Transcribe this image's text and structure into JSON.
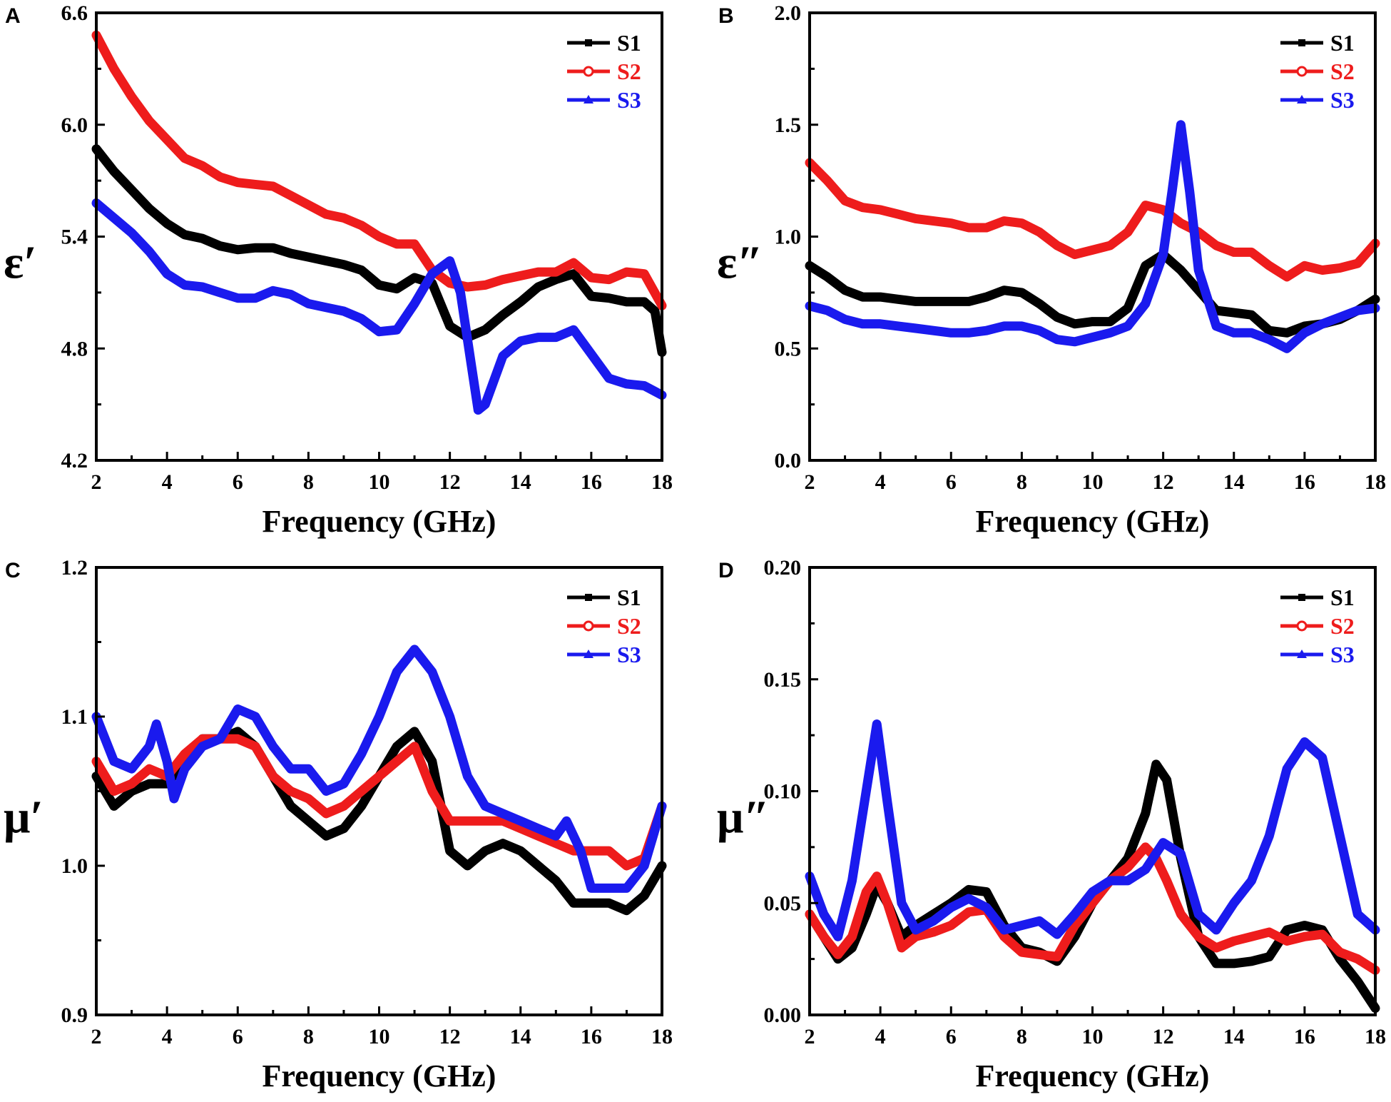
{
  "colors": {
    "S1": "#000000",
    "S2": "#ee1c1c",
    "S3": "#1a1aee"
  },
  "chart_data": [
    {
      "panel": "A",
      "type": "line",
      "xlabel": "Frequency (GHz)",
      "ylabel": "ε′",
      "xlim": [
        2,
        18
      ],
      "ylim": [
        4.2,
        6.6
      ],
      "xticks": [
        "2",
        "4",
        "6",
        "8",
        "10",
        "12",
        "14",
        "16",
        "18"
      ],
      "yticks": [
        "4.2",
        "4.8",
        "5.4",
        "6.0",
        "6.6"
      ],
      "legend": [
        "S1",
        "S2",
        "S3"
      ],
      "series": [
        {
          "name": "S1",
          "x": [
            2,
            2.5,
            3,
            3.5,
            4,
            4.5,
            5,
            5.5,
            6,
            6.5,
            7,
            7.5,
            8,
            8.5,
            9,
            9.5,
            10,
            10.5,
            11,
            11.5,
            12,
            12.5,
            13,
            13.5,
            14,
            14.5,
            15,
            15.5,
            16,
            16.5,
            17,
            17.5,
            17.8,
            18
          ],
          "y": [
            5.87,
            5.75,
            5.65,
            5.55,
            5.47,
            5.41,
            5.39,
            5.35,
            5.33,
            5.34,
            5.34,
            5.31,
            5.29,
            5.27,
            5.25,
            5.22,
            5.14,
            5.12,
            5.18,
            5.15,
            4.92,
            4.86,
            4.9,
            4.98,
            5.05,
            5.13,
            5.17,
            5.2,
            5.08,
            5.07,
            5.05,
            5.05,
            5.0,
            4.78
          ]
        },
        {
          "name": "S2",
          "x": [
            2,
            2.5,
            3,
            3.5,
            4,
            4.5,
            5,
            5.5,
            6,
            6.5,
            7,
            7.5,
            8,
            8.5,
            9,
            9.5,
            10,
            10.5,
            11,
            11.5,
            12,
            12.5,
            13,
            13.5,
            14,
            14.5,
            15,
            15.5,
            16,
            16.5,
            17,
            17.5,
            18
          ],
          "y": [
            6.48,
            6.3,
            6.15,
            6.02,
            5.92,
            5.82,
            5.78,
            5.72,
            5.69,
            5.68,
            5.67,
            5.62,
            5.57,
            5.52,
            5.5,
            5.46,
            5.4,
            5.36,
            5.36,
            5.22,
            5.15,
            5.13,
            5.14,
            5.17,
            5.19,
            5.21,
            5.21,
            5.26,
            5.18,
            5.17,
            5.21,
            5.2,
            5.03
          ]
        },
        {
          "name": "S3",
          "x": [
            2,
            2.5,
            3,
            3.5,
            4,
            4.5,
            5,
            5.5,
            6,
            6.5,
            7,
            7.5,
            8,
            8.5,
            9,
            9.5,
            10,
            10.5,
            11,
            11.5,
            12,
            12.3,
            12.6,
            12.8,
            13,
            13.5,
            14,
            14.5,
            15,
            15.5,
            16,
            16.5,
            17,
            17.5,
            18
          ],
          "y": [
            5.58,
            5.5,
            5.42,
            5.32,
            5.2,
            5.14,
            5.13,
            5.1,
            5.07,
            5.07,
            5.11,
            5.09,
            5.04,
            5.02,
            5.0,
            4.96,
            4.89,
            4.9,
            5.04,
            5.2,
            5.27,
            5.1,
            4.72,
            4.47,
            4.5,
            4.76,
            4.84,
            4.86,
            4.86,
            4.9,
            4.77,
            4.64,
            4.61,
            4.6,
            4.55
          ]
        }
      ]
    },
    {
      "panel": "B",
      "type": "line",
      "xlabel": "Frequency (GHz)",
      "ylabel": "ε″",
      "xlim": [
        2,
        18
      ],
      "ylim": [
        0.0,
        2.0
      ],
      "xticks": [
        "2",
        "4",
        "6",
        "8",
        "10",
        "12",
        "14",
        "16",
        "18"
      ],
      "yticks": [
        "0.0",
        "0.5",
        "1.0",
        "1.5",
        "2.0"
      ],
      "legend": [
        "S1",
        "S2",
        "S3"
      ],
      "series": [
        {
          "name": "S1",
          "x": [
            2,
            2.5,
            3,
            3.5,
            4,
            4.5,
            5,
            5.5,
            6,
            6.5,
            7,
            7.5,
            8,
            8.5,
            9,
            9.5,
            10,
            10.5,
            11,
            11.5,
            12,
            12.5,
            13,
            13.5,
            14,
            14.5,
            15,
            15.5,
            16,
            16.5,
            17,
            17.5,
            18
          ],
          "y": [
            0.87,
            0.82,
            0.76,
            0.73,
            0.73,
            0.72,
            0.71,
            0.71,
            0.71,
            0.71,
            0.73,
            0.76,
            0.75,
            0.7,
            0.64,
            0.61,
            0.62,
            0.62,
            0.68,
            0.87,
            0.92,
            0.85,
            0.76,
            0.67,
            0.66,
            0.65,
            0.58,
            0.57,
            0.6,
            0.61,
            0.63,
            0.67,
            0.72
          ]
        },
        {
          "name": "S2",
          "x": [
            2,
            2.5,
            3,
            3.5,
            4,
            4.5,
            5,
            5.5,
            6,
            6.5,
            7,
            7.5,
            8,
            8.5,
            9,
            9.5,
            10,
            10.5,
            11,
            11.5,
            12,
            12.5,
            13,
            13.5,
            14,
            14.5,
            15,
            15.5,
            16,
            16.5,
            17,
            17.5,
            18
          ],
          "y": [
            1.33,
            1.25,
            1.16,
            1.13,
            1.12,
            1.1,
            1.08,
            1.07,
            1.06,
            1.04,
            1.04,
            1.07,
            1.06,
            1.02,
            0.96,
            0.92,
            0.94,
            0.96,
            1.02,
            1.14,
            1.12,
            1.06,
            1.02,
            0.96,
            0.93,
            0.93,
            0.87,
            0.82,
            0.87,
            0.85,
            0.86,
            0.88,
            0.97
          ]
        },
        {
          "name": "S3",
          "x": [
            2,
            2.5,
            3,
            3.5,
            4,
            4.5,
            5,
            5.5,
            6,
            6.5,
            7,
            7.5,
            8,
            8.5,
            9,
            9.5,
            10,
            10.5,
            11,
            11.5,
            12,
            12.25,
            12.5,
            12.75,
            13,
            13.5,
            14,
            14.5,
            15,
            15.5,
            16,
            16.5,
            17,
            17.5,
            18
          ],
          "y": [
            0.69,
            0.67,
            0.63,
            0.61,
            0.61,
            0.6,
            0.59,
            0.58,
            0.57,
            0.57,
            0.58,
            0.6,
            0.6,
            0.58,
            0.54,
            0.53,
            0.55,
            0.57,
            0.6,
            0.7,
            0.92,
            1.2,
            1.5,
            1.2,
            0.85,
            0.6,
            0.57,
            0.57,
            0.54,
            0.5,
            0.57,
            0.61,
            0.64,
            0.67,
            0.68
          ]
        }
      ]
    },
    {
      "panel": "C",
      "type": "line",
      "xlabel": "Frequency (GHz)",
      "ylabel": "μ′",
      "xlim": [
        2,
        18
      ],
      "ylim": [
        0.9,
        1.2
      ],
      "xticks": [
        "2",
        "4",
        "6",
        "8",
        "10",
        "12",
        "14",
        "16",
        "18"
      ],
      "yticks": [
        "0.9",
        "1.0",
        "1.1",
        "1.2"
      ],
      "legend": [
        "S1",
        "S2",
        "S3"
      ],
      "series": [
        {
          "name": "S1",
          "x": [
            2,
            2.5,
            3,
            3.5,
            4,
            4.5,
            5,
            5.5,
            6,
            6.5,
            7,
            7.5,
            8,
            8.5,
            9,
            9.5,
            10,
            10.5,
            11,
            11.5,
            12,
            12.5,
            13,
            13.5,
            14,
            14.5,
            15,
            15.5,
            16,
            16.5,
            17,
            17.5,
            18
          ],
          "y": [
            1.06,
            1.04,
            1.05,
            1.055,
            1.055,
            1.07,
            1.085,
            1.085,
            1.09,
            1.08,
            1.06,
            1.04,
            1.03,
            1.02,
            1.025,
            1.04,
            1.06,
            1.08,
            1.09,
            1.07,
            1.01,
            1.0,
            1.01,
            1.015,
            1.01,
            1.0,
            0.99,
            0.975,
            0.975,
            0.975,
            0.97,
            0.98,
            1.0
          ]
        },
        {
          "name": "S2",
          "x": [
            2,
            2.5,
            3,
            3.5,
            4,
            4.5,
            5,
            5.5,
            6,
            6.5,
            7,
            7.5,
            8,
            8.5,
            9,
            9.5,
            10,
            10.5,
            11,
            11.5,
            12,
            12.5,
            13,
            13.5,
            14,
            14.5,
            15,
            15.5,
            16,
            16.5,
            17,
            17.5,
            18
          ],
          "y": [
            1.07,
            1.05,
            1.055,
            1.065,
            1.06,
            1.075,
            1.085,
            1.085,
            1.085,
            1.08,
            1.06,
            1.05,
            1.045,
            1.035,
            1.04,
            1.05,
            1.06,
            1.07,
            1.08,
            1.05,
            1.03,
            1.03,
            1.03,
            1.03,
            1.025,
            1.02,
            1.015,
            1.01,
            1.01,
            1.01,
            1.0,
            1.005,
            1.04
          ]
        },
        {
          "name": "S3",
          "x": [
            2,
            2.5,
            3,
            3.5,
            3.7,
            4,
            4.2,
            4.5,
            5,
            5.5,
            6,
            6.5,
            7,
            7.5,
            8,
            8.5,
            9,
            9.5,
            10,
            10.5,
            11,
            11.5,
            12,
            12.5,
            13,
            13.5,
            14,
            14.5,
            15,
            15.3,
            15.7,
            16,
            16.5,
            17,
            17.5,
            18
          ],
          "y": [
            1.1,
            1.07,
            1.065,
            1.08,
            1.095,
            1.07,
            1.045,
            1.065,
            1.08,
            1.085,
            1.105,
            1.1,
            1.08,
            1.065,
            1.065,
            1.05,
            1.055,
            1.075,
            1.1,
            1.13,
            1.145,
            1.13,
            1.1,
            1.06,
            1.04,
            1.035,
            1.03,
            1.025,
            1.02,
            1.03,
            1.01,
            0.985,
            0.985,
            0.985,
            1.0,
            1.04
          ]
        }
      ]
    },
    {
      "panel": "D",
      "type": "line",
      "xlabel": "Frequency (GHz)",
      "ylabel": "μ″",
      "xlim": [
        2,
        18
      ],
      "ylim": [
        0.0,
        0.2
      ],
      "xticks": [
        "2",
        "4",
        "6",
        "8",
        "10",
        "12",
        "14",
        "16",
        "18"
      ],
      "yticks": [
        "0.00",
        "0.05",
        "0.10",
        "0.15",
        "0.20"
      ],
      "legend": [
        "S1",
        "S2",
        "S3"
      ],
      "series": [
        {
          "name": "S1",
          "x": [
            2,
            2.4,
            2.8,
            3.2,
            3.6,
            3.9,
            4.2,
            4.6,
            5,
            5.5,
            6,
            6.5,
            7,
            7.5,
            8,
            8.5,
            9,
            9.5,
            10,
            10.5,
            11,
            11.5,
            11.8,
            12.1,
            12.5,
            13,
            13.5,
            14,
            14.5,
            15,
            15.5,
            16,
            16.5,
            17,
            17.5,
            18
          ],
          "y": [
            0.045,
            0.035,
            0.025,
            0.03,
            0.045,
            0.058,
            0.05,
            0.035,
            0.04,
            0.045,
            0.05,
            0.056,
            0.055,
            0.04,
            0.03,
            0.028,
            0.024,
            0.035,
            0.05,
            0.06,
            0.07,
            0.09,
            0.112,
            0.105,
            0.07,
            0.035,
            0.023,
            0.023,
            0.024,
            0.026,
            0.038,
            0.04,
            0.038,
            0.025,
            0.015,
            0.003
          ]
        },
        {
          "name": "S2",
          "x": [
            2,
            2.4,
            2.8,
            3.2,
            3.6,
            3.9,
            4.2,
            4.6,
            5,
            5.5,
            6,
            6.5,
            7,
            7.5,
            8,
            8.5,
            9,
            9.5,
            10,
            10.5,
            11,
            11.5,
            11.8,
            12.1,
            12.5,
            13,
            13.5,
            14,
            14.5,
            15,
            15.5,
            16,
            16.5,
            17,
            17.5,
            18
          ],
          "y": [
            0.045,
            0.035,
            0.027,
            0.035,
            0.055,
            0.062,
            0.05,
            0.03,
            0.035,
            0.037,
            0.04,
            0.046,
            0.047,
            0.035,
            0.028,
            0.027,
            0.026,
            0.04,
            0.05,
            0.06,
            0.066,
            0.075,
            0.07,
            0.06,
            0.045,
            0.035,
            0.03,
            0.033,
            0.035,
            0.037,
            0.033,
            0.035,
            0.036,
            0.028,
            0.025,
            0.02
          ]
        },
        {
          "name": "S3",
          "x": [
            2,
            2.4,
            2.8,
            3.2,
            3.6,
            3.9,
            4.2,
            4.6,
            5,
            5.5,
            6,
            6.5,
            7,
            7.5,
            8,
            8.5,
            9,
            9.5,
            10,
            10.5,
            11,
            11.5,
            12,
            12.5,
            13,
            13.5,
            14,
            14.5,
            15,
            15.5,
            16,
            16.5,
            17,
            17.5,
            18
          ],
          "y": [
            0.062,
            0.045,
            0.035,
            0.06,
            0.1,
            0.13,
            0.095,
            0.05,
            0.038,
            0.042,
            0.048,
            0.052,
            0.048,
            0.038,
            0.04,
            0.042,
            0.036,
            0.045,
            0.055,
            0.06,
            0.06,
            0.065,
            0.077,
            0.072,
            0.045,
            0.038,
            0.05,
            0.06,
            0.08,
            0.11,
            0.122,
            0.115,
            0.08,
            0.045,
            0.038
          ]
        }
      ]
    }
  ]
}
